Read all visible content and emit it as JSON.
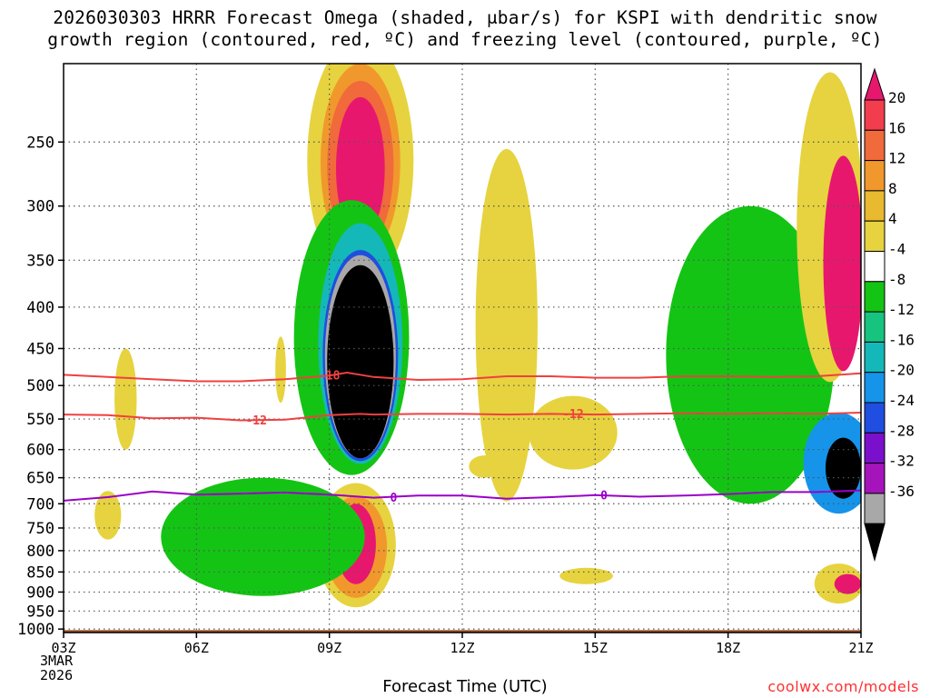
{
  "title": {
    "line1": "2026030303 HRRR Forecast Omega (shaded, μbar/s) for KSPI with dendritic snow",
    "line2": "growth region (contoured, red, ºC) and freezing level (contoured, purple, ºC)"
  },
  "xlabel": "Forecast Time (UTC)",
  "credit": "coolwx.com/models",
  "date_label": {
    "day": "3MAR",
    "year": "2026"
  },
  "chart_data": {
    "type": "time-height contour",
    "x_ticks_hours": [
      0,
      3,
      6,
      9,
      12,
      15,
      18
    ],
    "x_tick_labels": [
      "03Z",
      "06Z",
      "09Z",
      "12Z",
      "15Z",
      "18Z",
      "21Z"
    ],
    "y_levels_hpa": [
      250,
      300,
      350,
      400,
      450,
      500,
      550,
      600,
      650,
      700,
      750,
      800,
      850,
      900,
      950,
      1000
    ],
    "y_range_hpa": [
      200,
      1010
    ],
    "colorbar": {
      "labels": [
        "20",
        "16",
        "12",
        "8",
        "4",
        "-4",
        "-8",
        "-12",
        "-16",
        "-20",
        "-24",
        "-28",
        "-32",
        "-36"
      ],
      "colors": [
        "#e8176e",
        "#f23d4e",
        "#f06a3b",
        "#f1982c",
        "#e9b930",
        "#e6d33f",
        "#ffffff",
        "#14c414",
        "#16c47f",
        "#14b8b8",
        "#1594ea",
        "#1f4ee0",
        "#7a10cc",
        "#a514bb",
        "#a8a8a8",
        "#000000"
      ]
    },
    "omega_features": [
      {
        "color": "#e6d33f",
        "level": 4,
        "center": [
          1.45,
          525
        ],
        "h_width": 0.14,
        "p_half": 30
      },
      {
        "color": "#e6d33f",
        "level": 4,
        "center": [
          4.9,
          480
        ],
        "h_width": 0.12,
        "p_half": 45
      },
      {
        "color": "#e6d33f",
        "level": 4,
        "center": [
          1.4,
          525
        ],
        "h_width": 0.25,
        "p_half": 75
      },
      {
        "color": "#e6d33f",
        "level": 4,
        "center": [
          1.0,
          725
        ],
        "h_width": 0.3,
        "p_half": 50
      },
      {
        "color": "#e6d33f",
        "level": 4,
        "center": [
          6.7,
          280
        ],
        "h_width": 1.2,
        "p_half": 95
      },
      {
        "color": "#f1982c",
        "level": 8,
        "center": [
          6.7,
          275
        ],
        "h_width": 0.9,
        "p_half": 75
      },
      {
        "color": "#f06a3b",
        "level": 12,
        "center": [
          6.7,
          275
        ],
        "h_width": 0.75,
        "p_half": 65
      },
      {
        "color": "#e8176e",
        "level": 20,
        "center": [
          6.7,
          275
        ],
        "h_width": 0.55,
        "p_half": 55
      },
      {
        "color": "#e6d33f",
        "level": 4,
        "center": [
          10.0,
          475
        ],
        "h_width": 0.7,
        "p_half": 220
      },
      {
        "color": "#e6d33f",
        "level": 4,
        "center": [
          11.5,
          575
        ],
        "h_width": 1.0,
        "p_half": 60
      },
      {
        "color": "#e6d33f",
        "level": 4,
        "center": [
          9.5,
          630
        ],
        "h_width": 0.35,
        "p_half": 20
      },
      {
        "color": "#e6d33f",
        "level": 4,
        "center": [
          11.8,
          860
        ],
        "h_width": 0.6,
        "p_half": 20
      },
      {
        "color": "#e6d33f",
        "level": 4,
        "center": [
          6.6,
          800
        ],
        "h_width": 0.9,
        "p_half": 140
      },
      {
        "color": "#f1982c",
        "level": 8,
        "center": [
          6.6,
          800
        ],
        "h_width": 0.7,
        "p_half": 115
      },
      {
        "color": "#e8176e",
        "level": 20,
        "center": [
          6.6,
          790
        ],
        "h_width": 0.45,
        "p_half": 90
      },
      {
        "color": "#14c414",
        "level": -4,
        "center": [
          4.5,
          780
        ],
        "h_width": 2.3,
        "p_half": 130
      },
      {
        "color": "#14c414",
        "level": -4,
        "center": [
          6.5,
          470
        ],
        "h_width": 1.3,
        "p_half": 175
      },
      {
        "color": "#14b8b8",
        "level": -12,
        "center": [
          6.7,
          470
        ],
        "h_width": 0.95,
        "p_half": 155
      },
      {
        "color": "#1f4ee0",
        "level": -24,
        "center": [
          6.7,
          480
        ],
        "h_width": 0.85,
        "p_half": 140
      },
      {
        "color": "#a8a8a8",
        "level": -32,
        "center": [
          6.7,
          480
        ],
        "h_width": 0.8,
        "p_half": 135
      },
      {
        "color": "#000000",
        "level": -36,
        "center": [
          6.7,
          485
        ],
        "h_width": 0.75,
        "p_half": 130
      },
      {
        "color": "#14c414",
        "level": -4,
        "center": [
          15.5,
          500
        ],
        "h_width": 1.9,
        "p_half": 200
      },
      {
        "color": "#1594ea",
        "level": -20,
        "center": [
          17.5,
          630
        ],
        "h_width": 0.8,
        "p_half": 90
      },
      {
        "color": "#000000",
        "level": -36,
        "center": [
          17.6,
          635
        ],
        "h_width": 0.4,
        "p_half": 55
      },
      {
        "color": "#e6d33f",
        "level": 4,
        "center": [
          17.3,
          350
        ],
        "h_width": 0.75,
        "p_half": 145
      },
      {
        "color": "#e8176e",
        "level": 20,
        "center": [
          17.6,
          370
        ],
        "h_width": 0.45,
        "p_half": 110
      },
      {
        "color": "#e6d33f",
        "level": 4,
        "center": [
          17.5,
          880
        ],
        "h_width": 0.55,
        "p_half": 50
      },
      {
        "color": "#e8176e",
        "level": 20,
        "center": [
          17.7,
          880
        ],
        "h_width": 0.3,
        "p_half": 25
      }
    ],
    "dgz_contours": [
      {
        "label": "-18",
        "color": "#f04040",
        "points": [
          [
            0,
            485
          ],
          [
            1,
            488
          ],
          [
            2,
            491
          ],
          [
            3,
            494
          ],
          [
            4,
            494
          ],
          [
            5,
            491
          ],
          [
            6,
            486
          ],
          [
            6.4,
            482
          ],
          [
            7,
            488
          ],
          [
            8,
            492
          ],
          [
            9,
            491
          ],
          [
            10,
            487
          ],
          [
            11,
            487
          ],
          [
            12,
            489
          ],
          [
            13,
            489
          ],
          [
            14,
            487
          ],
          [
            15,
            487
          ],
          [
            16,
            488
          ],
          [
            17,
            487
          ],
          [
            18,
            483
          ]
        ]
      },
      {
        "label": "-12",
        "color": "#f04040",
        "points": [
          [
            0,
            543
          ],
          [
            1,
            544
          ],
          [
            2,
            549
          ],
          [
            3,
            548
          ],
          [
            4,
            552
          ],
          [
            5,
            551
          ],
          [
            6,
            544
          ],
          [
            6.7,
            542
          ],
          [
            7,
            543
          ],
          [
            8,
            542
          ],
          [
            9,
            542
          ],
          [
            10,
            543
          ],
          [
            11,
            542
          ],
          [
            12,
            543
          ],
          [
            13,
            542
          ],
          [
            14,
            541
          ],
          [
            15,
            542
          ],
          [
            16,
            541
          ],
          [
            17,
            542
          ],
          [
            18,
            540
          ]
        ]
      }
    ],
    "freezing_level": {
      "label": "0",
      "color": "#9b00c9",
      "points": [
        [
          0,
          694
        ],
        [
          1,
          687
        ],
        [
          2,
          676
        ],
        [
          3,
          682
        ],
        [
          4,
          680
        ],
        [
          5,
          678
        ],
        [
          6,
          682
        ],
        [
          7,
          688
        ],
        [
          8,
          684
        ],
        [
          9,
          684
        ],
        [
          10,
          690
        ],
        [
          11,
          687
        ],
        [
          12,
          683
        ],
        [
          13,
          686
        ],
        [
          14,
          684
        ],
        [
          15,
          681
        ],
        [
          16,
          677
        ],
        [
          17,
          677
        ],
        [
          18,
          674
        ]
      ]
    },
    "terrain": {
      "color": "#9a4e24",
      "top_hpa": 1003
    }
  }
}
